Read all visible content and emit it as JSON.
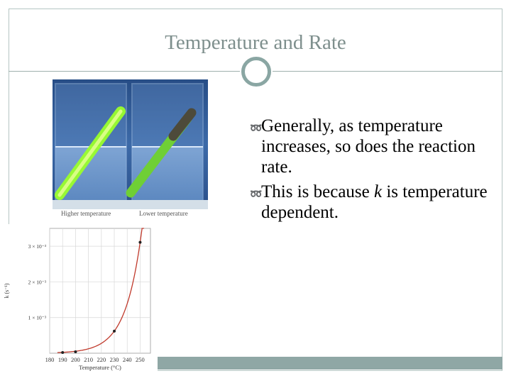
{
  "slide": {
    "title": "Temperature and Rate",
    "bullets": [
      {
        "segments": [
          "Generally, as temperature increases, so does the reaction rate."
        ]
      },
      {
        "segments": [
          "This is because ",
          "k",
          " is temperature dependent."
        ]
      }
    ],
    "photo": {
      "captions": [
        "Higher temperature",
        "Lower temperature"
      ]
    },
    "colors": {
      "accent": "#8fa7a5",
      "title": "#7e8f8d",
      "curve": "#c0392b"
    }
  },
  "chart_data": {
    "type": "line",
    "xlabel": "Temperature (°C)",
    "ylabel": "k (s⁻¹)",
    "x_ticks": [
      180,
      190,
      200,
      210,
      220,
      230,
      240,
      250
    ],
    "y_ticks": [
      "1 × 10⁻³",
      "2 × 10⁻³",
      "3 × 10⁻³"
    ],
    "y_tick_values": [
      0.001,
      0.002,
      0.003
    ],
    "xlim": [
      180,
      258
    ],
    "ylim": [
      0,
      0.0035
    ],
    "grid": true,
    "series": [
      {
        "points": [
          {
            "x": 190,
            "y": 2e-05
          },
          {
            "x": 200,
            "y": 4e-05
          },
          {
            "x": 230,
            "y": 0.00062
          },
          {
            "x": 250,
            "y": 0.00311
          }
        ]
      }
    ]
  }
}
